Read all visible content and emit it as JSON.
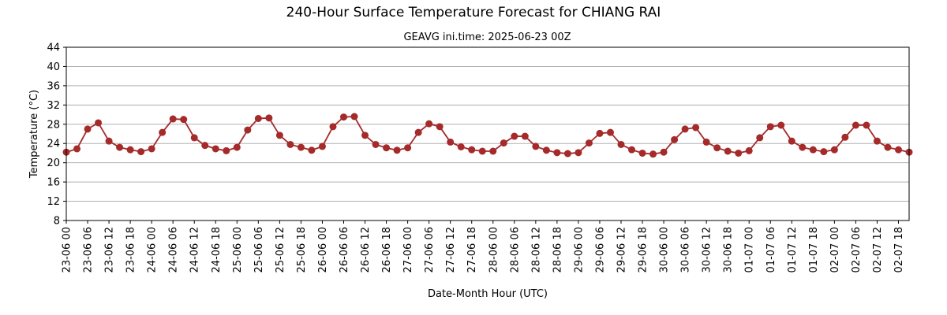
{
  "chart_data": {
    "type": "line",
    "title": "240-Hour Surface Temperature Forecast for CHIANG RAI",
    "subtitle": "GEAVG ini.time: 2025-06-23 00Z",
    "xlabel": "Date-Month Hour (UTC)",
    "ylabel": "Temperature (°C)",
    "ylim": [
      8,
      44
    ],
    "yticks": [
      8,
      12,
      16,
      20,
      24,
      28,
      32,
      36,
      40,
      44
    ],
    "grid": "horizontal",
    "x_step_hours": 3,
    "xtick_labels": [
      "23-06 00",
      "23-06 06",
      "23-06 12",
      "23-06 18",
      "24-06 00",
      "24-06 06",
      "24-06 12",
      "24-06 18",
      "25-06 00",
      "25-06 06",
      "25-06 12",
      "25-06 18",
      "26-06 00",
      "26-06 06",
      "26-06 12",
      "26-06 18",
      "27-06 00",
      "27-06 06",
      "27-06 12",
      "27-06 18",
      "28-06 00",
      "28-06 06",
      "28-06 12",
      "28-06 18",
      "29-06 00",
      "29-06 06",
      "29-06 12",
      "29-06 18",
      "30-06 00",
      "30-06 06",
      "30-06 12",
      "30-06 18",
      "01-07 00",
      "01-07 06",
      "01-07 12",
      "01-07 18",
      "02-07 00",
      "02-07 06",
      "02-07 12",
      "02-07 18"
    ],
    "series": [
      {
        "color": "#a52a2a",
        "values": [
          22.2,
          22.9,
          27.0,
          28.3,
          24.5,
          23.2,
          22.7,
          22.3,
          22.9,
          26.3,
          29.1,
          29.0,
          25.2,
          23.6,
          22.9,
          22.5,
          23.2,
          26.8,
          29.2,
          29.3,
          25.7,
          23.8,
          23.2,
          22.6,
          23.4,
          27.5,
          29.5,
          29.6,
          25.7,
          23.8,
          23.1,
          22.6,
          23.1,
          26.3,
          28.1,
          27.5,
          24.3,
          23.3,
          22.7,
          22.4,
          22.4,
          24.1,
          25.5,
          25.5,
          23.4,
          22.6,
          22.1,
          21.9,
          22.1,
          24.1,
          26.1,
          26.3,
          23.8,
          22.7,
          22.0,
          21.8,
          22.2,
          24.8,
          27.0,
          27.3,
          24.3,
          23.1,
          22.4,
          22.0,
          22.5,
          25.2,
          27.5,
          27.8,
          24.5,
          23.2,
          22.7,
          22.3,
          22.7,
          25.3,
          27.8,
          27.8,
          24.5,
          23.2,
          22.7,
          22.2
        ]
      }
    ]
  }
}
